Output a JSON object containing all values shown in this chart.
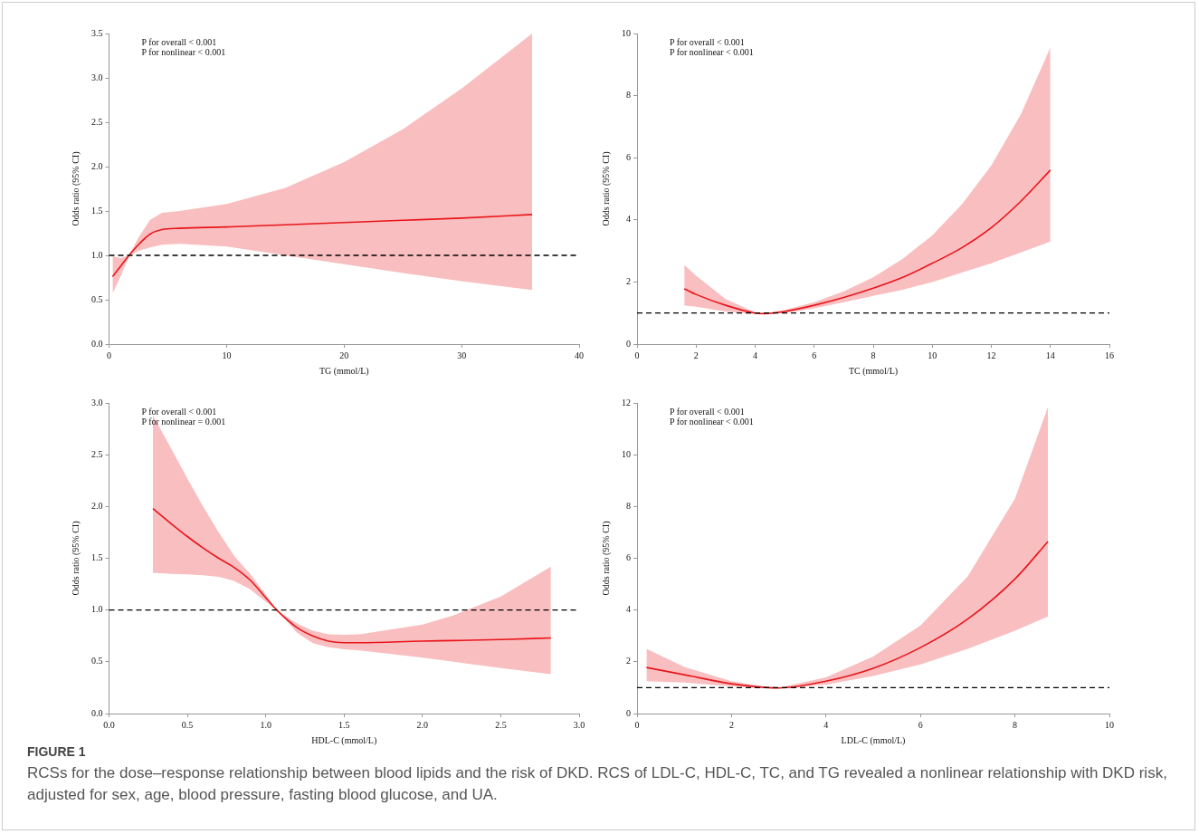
{
  "chart_data": [
    {
      "type": "line",
      "xlabel": "TG (mmol/L)",
      "ylabel": "Odds ratio (95% CI)",
      "xlim": [
        0,
        40
      ],
      "xticks": [
        0,
        10,
        20,
        30,
        40
      ],
      "ylim": [
        0,
        3.5
      ],
      "yticks": [
        {
          "value": 0,
          "label": "0.0"
        },
        {
          "value": 0.5,
          "label": "0.5"
        },
        {
          "value": 1,
          "label": "1.0"
        },
        {
          "value": 1.5,
          "label": "1.5"
        },
        {
          "value": 2,
          "label": "2.0"
        },
        {
          "value": 2.5,
          "label": "2.5"
        },
        {
          "value": 3,
          "label": "3.0"
        },
        {
          "value": 3.5,
          "label": "3.5"
        }
      ],
      "series": [
        {
          "color": "#e8161b",
          "x": [
            0.3,
            1,
            1.7,
            2.5,
            3.5,
            4.5,
            6,
            10,
            15,
            20,
            25,
            30,
            36
          ],
          "values": [
            0.76,
            0.88,
            1.0,
            1.12,
            1.24,
            1.29,
            1.305,
            1.32,
            1.345,
            1.37,
            1.395,
            1.42,
            1.46
          ],
          "lower": [
            0.57,
            0.77,
            0.99,
            1.05,
            1.09,
            1.12,
            1.13,
            1.1,
            1.0,
            0.9,
            0.8,
            0.71,
            0.61
          ],
          "upper": [
            0.99,
            0.97,
            1.0,
            1.2,
            1.4,
            1.48,
            1.5,
            1.58,
            1.76,
            2.05,
            2.42,
            2.88,
            3.5
          ]
        }
      ],
      "ref_lines": [
        {
          "axis": "y",
          "value": 1,
          "color": "#000000",
          "line_style": "dashed"
        }
      ],
      "annotations": [
        "P for overall < 0.001",
        "P for nonlinear < 0.001"
      ]
    },
    {
      "type": "line",
      "xlabel": "TC (mmol/L)",
      "ylabel": "Odds ratio (95% CI)",
      "xlim": [
        0,
        16
      ],
      "xticks": [
        0,
        2,
        4,
        6,
        8,
        10,
        12,
        14,
        16
      ],
      "ylim": [
        0,
        10
      ],
      "yticks": [
        0,
        2,
        4,
        6,
        8,
        10
      ],
      "series": [
        {
          "color": "#e8161b",
          "x": [
            1.6,
            2,
            3,
            4,
            4.3,
            5,
            6,
            7,
            8,
            9,
            10,
            11,
            12,
            13,
            14
          ],
          "values": [
            1.78,
            1.6,
            1.25,
            1.0,
            0.98,
            1.05,
            1.25,
            1.5,
            1.8,
            2.15,
            2.6,
            3.1,
            3.75,
            4.6,
            5.6
          ],
          "lower": [
            1.25,
            1.2,
            1.05,
            0.97,
            0.97,
            1.0,
            1.15,
            1.35,
            1.55,
            1.75,
            2.0,
            2.3,
            2.6,
            2.95,
            3.3
          ],
          "upper": [
            2.55,
            2.2,
            1.45,
            1.02,
            0.99,
            1.1,
            1.35,
            1.7,
            2.15,
            2.75,
            3.5,
            4.5,
            5.75,
            7.4,
            9.55
          ]
        }
      ],
      "ref_lines": [
        {
          "axis": "y",
          "value": 1,
          "color": "#000000",
          "line_style": "dashed"
        }
      ],
      "annotations": [
        "P for overall < 0.001",
        "P for nonlinear < 0.001"
      ]
    },
    {
      "type": "line",
      "xlabel": "HDL-C (mmol/L)",
      "ylabel": "Odds ratio (95% CI)",
      "xlim": [
        0,
        3
      ],
      "xticks": [
        {
          "value": 0,
          "label": "0.0"
        },
        {
          "value": 0.5,
          "label": "0.5"
        },
        {
          "value": 1,
          "label": "1.0"
        },
        {
          "value": 1.5,
          "label": "1.5"
        },
        {
          "value": 2,
          "label": "2.0"
        },
        {
          "value": 2.5,
          "label": "2.5"
        },
        {
          "value": 3,
          "label": "3.0"
        }
      ],
      "ylim": [
        0,
        3
      ],
      "yticks": [
        {
          "value": 0,
          "label": "0.0"
        },
        {
          "value": 0.5,
          "label": "0.5"
        },
        {
          "value": 1,
          "label": "1.0"
        },
        {
          "value": 1.5,
          "label": "1.5"
        },
        {
          "value": 2,
          "label": "2.0"
        },
        {
          "value": 2.5,
          "label": "2.5"
        },
        {
          "value": 3,
          "label": "3.0"
        }
      ],
      "series": [
        {
          "color": "#e8161b",
          "x": [
            0.28,
            0.4,
            0.5,
            0.6,
            0.7,
            0.8,
            0.9,
            1.0,
            1.07,
            1.2,
            1.3,
            1.4,
            1.5,
            1.6,
            2.0,
            2.2,
            2.5,
            2.82
          ],
          "values": [
            1.98,
            1.83,
            1.71,
            1.6,
            1.5,
            1.41,
            1.29,
            1.12,
            1.0,
            0.83,
            0.75,
            0.7,
            0.685,
            0.685,
            0.7,
            0.705,
            0.715,
            0.73
          ],
          "lower": [
            1.36,
            1.35,
            1.345,
            1.335,
            1.32,
            1.28,
            1.2,
            1.08,
            1.0,
            0.78,
            0.68,
            0.64,
            0.62,
            0.61,
            0.54,
            0.5,
            0.44,
            0.38
          ],
          "upper": [
            2.88,
            2.55,
            2.27,
            2.0,
            1.75,
            1.52,
            1.35,
            1.15,
            1.0,
            0.87,
            0.8,
            0.765,
            0.76,
            0.765,
            0.86,
            0.95,
            1.13,
            1.42
          ]
        }
      ],
      "ref_lines": [
        {
          "axis": "y",
          "value": 1,
          "color": "#000000",
          "line_style": "dashed"
        }
      ],
      "annotations": [
        "P for overall < 0.001",
        "P for nonlinear = 0.001"
      ]
    },
    {
      "type": "line",
      "xlabel": "LDL-C (mmol/L)",
      "ylabel": "Odds ratio (95% CI)",
      "xlim": [
        0,
        10
      ],
      "xticks": [
        0,
        2,
        4,
        6,
        8,
        10
      ],
      "ylim": [
        0,
        12
      ],
      "yticks": [
        0,
        2,
        4,
        6,
        8,
        10,
        12
      ],
      "series": [
        {
          "color": "#e8161b",
          "x": [
            0.2,
            1,
            2,
            2.8,
            3,
            4,
            5,
            6,
            7,
            8,
            8.7
          ],
          "values": [
            1.78,
            1.5,
            1.15,
            1.0,
            0.99,
            1.25,
            1.75,
            2.55,
            3.65,
            5.2,
            6.65
          ],
          "lower": [
            1.25,
            1.2,
            1.05,
            0.97,
            0.97,
            1.12,
            1.45,
            1.9,
            2.5,
            3.2,
            3.75
          ],
          "upper": [
            2.5,
            1.8,
            1.25,
            1.01,
            1.0,
            1.4,
            2.2,
            3.4,
            5.3,
            8.3,
            11.85
          ]
        }
      ],
      "ref_lines": [
        {
          "axis": "y",
          "value": 1,
          "color": "#000000",
          "line_style": "dashed"
        }
      ],
      "annotations": [
        "P for overall < 0.001",
        "P for nonlinear < 0.001",
        "FIGURE 1",
        "RCSs for the dose–response relationship between blood lipids and the risk of DKD. RCS of LDL-C, HDL-C, TC, and TG revealed a nonlinear relationship with DKD risk, adjusted for sex, age, blood pressure, fasting blood glucose, and UA."
      ]
    }
  ]
}
